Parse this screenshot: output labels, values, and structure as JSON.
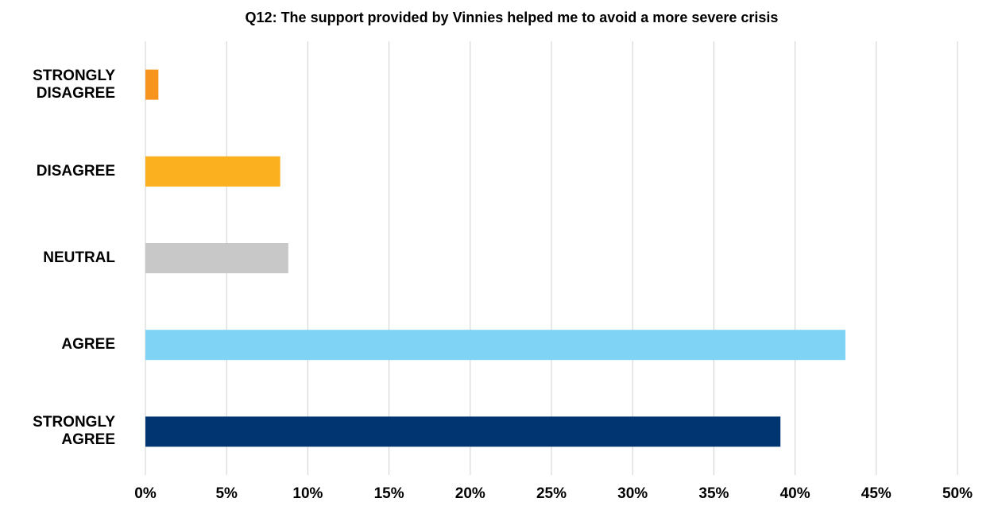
{
  "chart_data": {
    "type": "hbar",
    "title": "Q12: The support provided by Vinnies helped me to avoid a more severe crisis",
    "categories": [
      "STRONGLY DISAGREE",
      "DISAGREE",
      "NEUTRAL",
      "AGREE",
      "STRONGLY AGREE"
    ],
    "values": [
      0.8,
      8.3,
      8.8,
      43.1,
      39.1
    ],
    "colors": [
      "#f7941d",
      "#fbb01f",
      "#c8c8c8",
      "#7fd3f5",
      "#003571"
    ],
    "xlim": [
      0,
      50
    ],
    "xticks": [
      {
        "value": 0,
        "label": "0%"
      },
      {
        "value": 5,
        "label": "5%"
      },
      {
        "value": 10,
        "label": "10%"
      },
      {
        "value": 15,
        "label": "15%"
      },
      {
        "value": 20,
        "label": "20%"
      },
      {
        "value": 25,
        "label": "25%"
      },
      {
        "value": 30,
        "label": "30%"
      },
      {
        "value": 35,
        "label": "35%"
      },
      {
        "value": 40,
        "label": "40%"
      },
      {
        "value": 45,
        "label": "45%"
      },
      {
        "value": 50,
        "label": "50%"
      }
    ],
    "grid": true
  }
}
